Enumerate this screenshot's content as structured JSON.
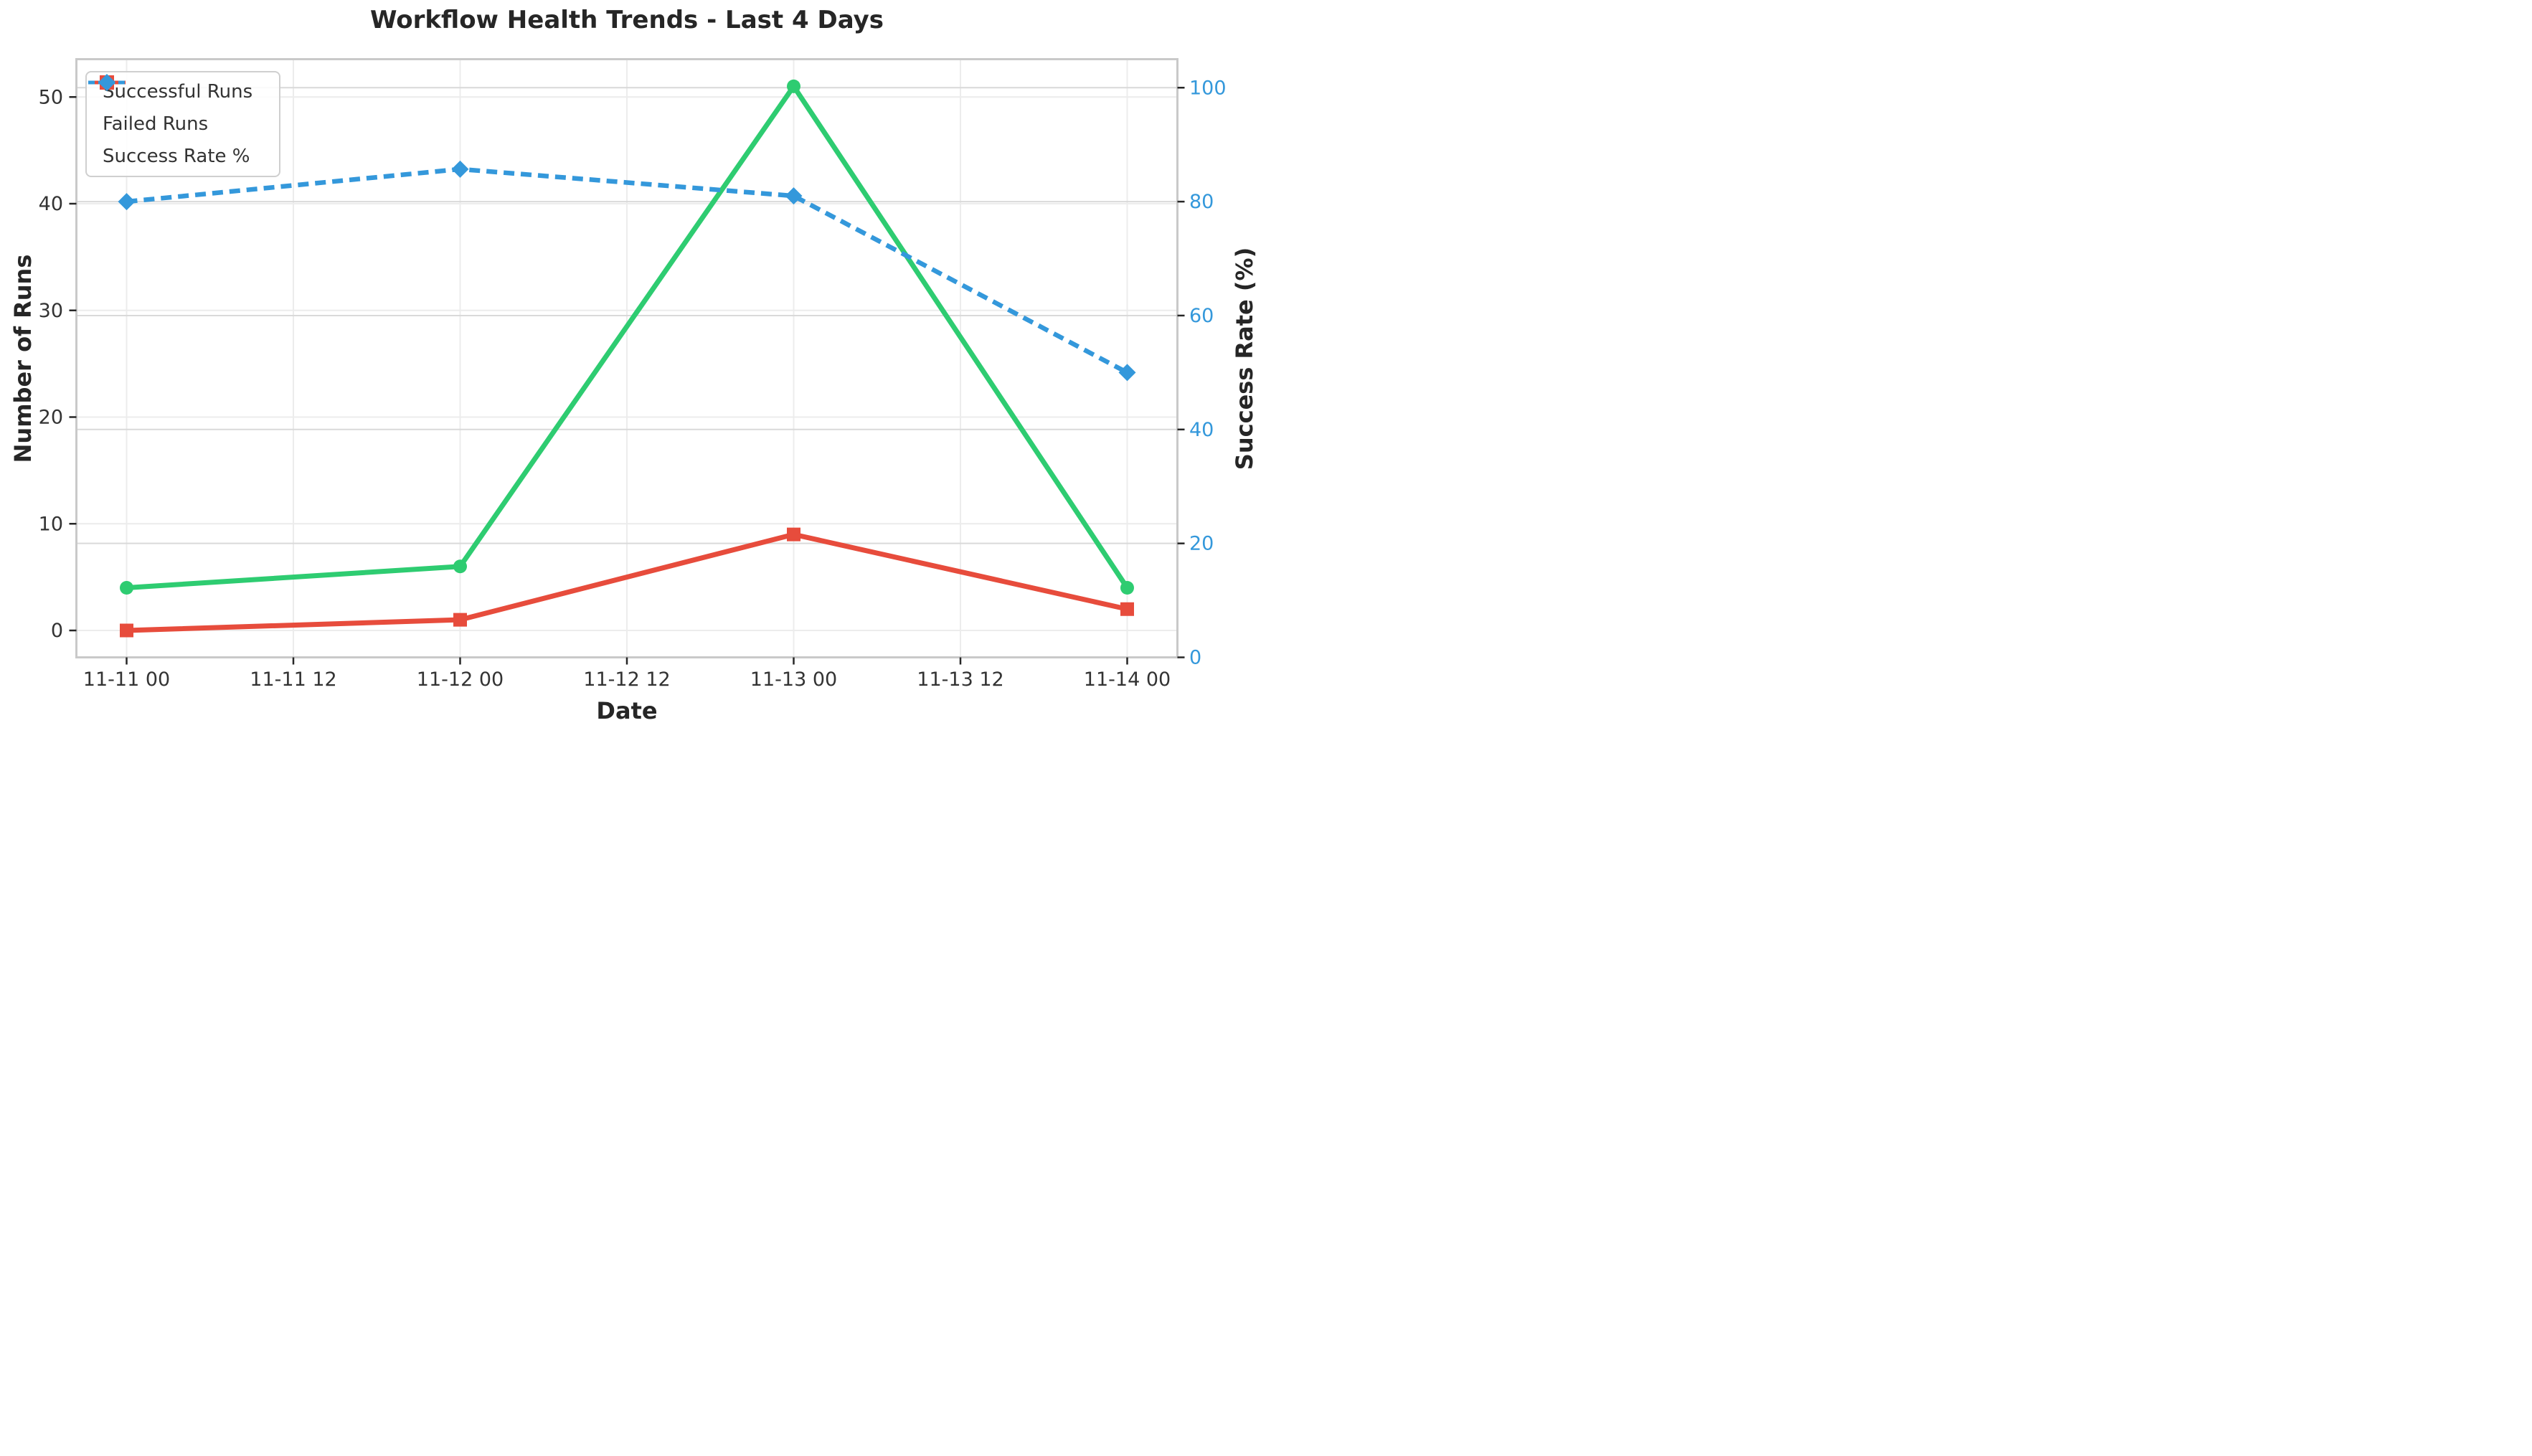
{
  "chart_data": {
    "type": "line",
    "title": "Workflow Health Trends - Last 4 Days",
    "xlabel": "Date",
    "ylabel_left": "Number of Runs",
    "ylabel_right": "Success Rate (%)",
    "x_tick_labels": [
      "11-11 00",
      "11-11 12",
      "11-12 00",
      "11-12 12",
      "11-13 00",
      "11-13 12",
      "11-14 00"
    ],
    "categories": [
      "11-11 00",
      "11-12 00",
      "11-13 00",
      "11-14 00"
    ],
    "category_tick_indices": [
      0,
      2,
      4,
      6
    ],
    "left_axis": {
      "label": "Number of Runs",
      "ticks": [
        0,
        10,
        20,
        30,
        40,
        50
      ]
    },
    "right_axis": {
      "label": "Success Rate (%)",
      "ticks": [
        0,
        20,
        40,
        60,
        80,
        100
      ]
    },
    "grid": true,
    "legend_position": "upper left",
    "series": [
      {
        "name": "Successful Runs",
        "axis": "left",
        "color": "#2ecc71",
        "marker": "circle",
        "line_style": "solid",
        "values": [
          4,
          6,
          51,
          4
        ]
      },
      {
        "name": "Failed Runs",
        "axis": "left",
        "color": "#e74c3c",
        "marker": "square",
        "line_style": "solid",
        "values": [
          0,
          1,
          9,
          2
        ]
      },
      {
        "name": "Success Rate %",
        "axis": "right",
        "color": "#3498db",
        "marker": "diamond",
        "line_style": "dashed",
        "values": [
          80,
          85.7,
          81,
          50
        ]
      }
    ],
    "colors": {
      "green": "#2ecc71",
      "red": "#e74c3c",
      "accent_blue": "#3498db",
      "tick_text": "#333333",
      "right_tick_text": "#3498db",
      "title_text": "#262626",
      "grid": "#ececec",
      "grid_right": "#d9d9d9",
      "spine": "#c9c9c9"
    }
  }
}
